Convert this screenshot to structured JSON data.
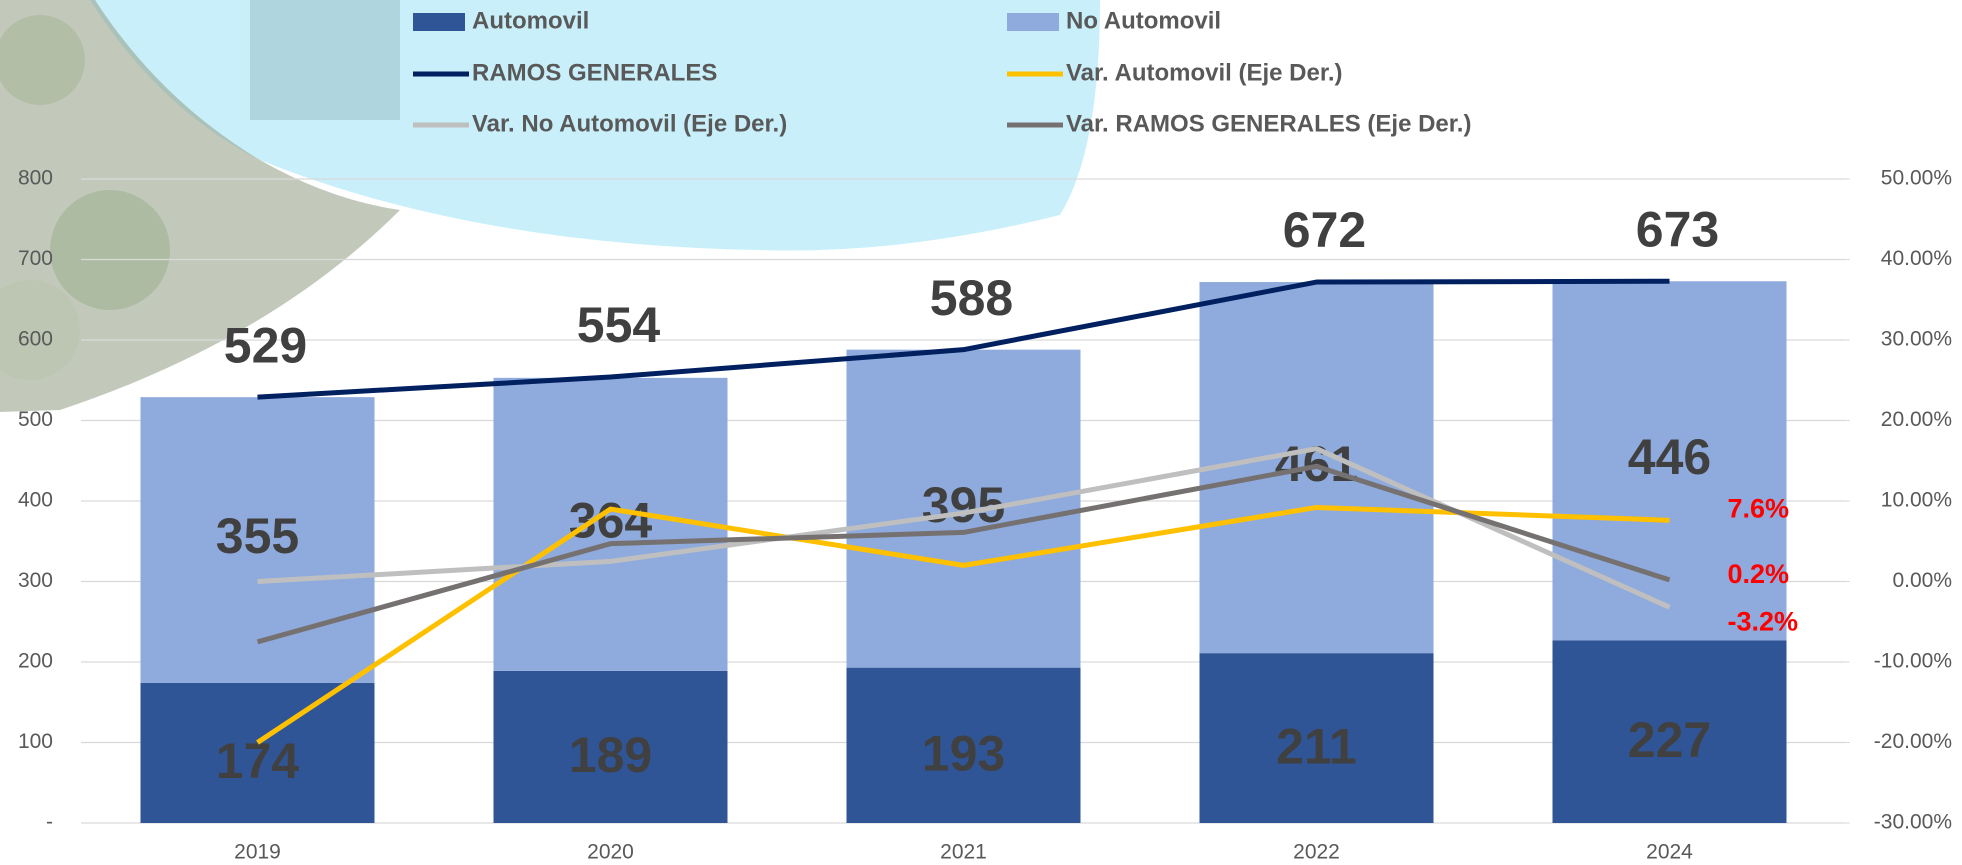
{
  "chart_data": {
    "type": "bar",
    "categories": [
      "2019",
      "2020",
      "2021",
      "2022",
      "2024"
    ],
    "series": [
      {
        "name": "Automovil",
        "type": "bar",
        "color": "#2f5597",
        "values": [
          174,
          189,
          193,
          211,
          227
        ]
      },
      {
        "name": "No Automovil",
        "type": "bar",
        "color": "#8faadc",
        "values": [
          355,
          364,
          395,
          461,
          446
        ]
      },
      {
        "name": "RAMOS GENERALES",
        "type": "line",
        "color": "#002060",
        "values": [
          529,
          554,
          588,
          672,
          673
        ]
      },
      {
        "name": "Var. Automovil (Eje Der.)",
        "type": "line",
        "axis": "y2",
        "color": "#ffc000",
        "values": [
          -20,
          9,
          2,
          9.2,
          7.6
        ],
        "value_labels": [
          null,
          null,
          null,
          null,
          "7.6%"
        ]
      },
      {
        "name": "Var. No Automovil (Eje Der.)",
        "type": "line",
        "axis": "y2",
        "color": "#bfbfbf",
        "values": [
          0,
          2.5,
          8.5,
          16.5,
          -3.2
        ],
        "value_labels": [
          null,
          null,
          null,
          null,
          "-3.2%"
        ]
      },
      {
        "name": "Var. RAMOS GENERALES (Eje Der.)",
        "type": "line",
        "axis": "y2",
        "color": "#767171",
        "values": [
          -7.5,
          4.7,
          6.1,
          14.3,
          0.2
        ],
        "value_labels": [
          null,
          null,
          null,
          null,
          "0.2%"
        ]
      }
    ],
    "stacked": true,
    "ylim": [
      0,
      800
    ],
    "yticks": [
      {
        "value": 0,
        "label": "-"
      },
      100,
      200,
      300,
      400,
      500,
      600,
      700,
      800
    ],
    "y2lim": [
      -30,
      50
    ],
    "y2ticks": [
      {
        "value": -30,
        "label": "-30.00%"
      },
      {
        "value": -20,
        "label": "-20.00%"
      },
      {
        "value": -10,
        "label": "-10.00%"
      },
      {
        "value": 0,
        "label": "0.00%"
      },
      {
        "value": 10,
        "label": "10.00%"
      },
      {
        "value": 20,
        "label": "20.00%"
      },
      {
        "value": 30,
        "label": "30.00%"
      },
      {
        "value": 40,
        "label": "40.00%"
      },
      {
        "value": 50,
        "label": "50.00%"
      }
    ],
    "grid": true,
    "legend": "top"
  }
}
